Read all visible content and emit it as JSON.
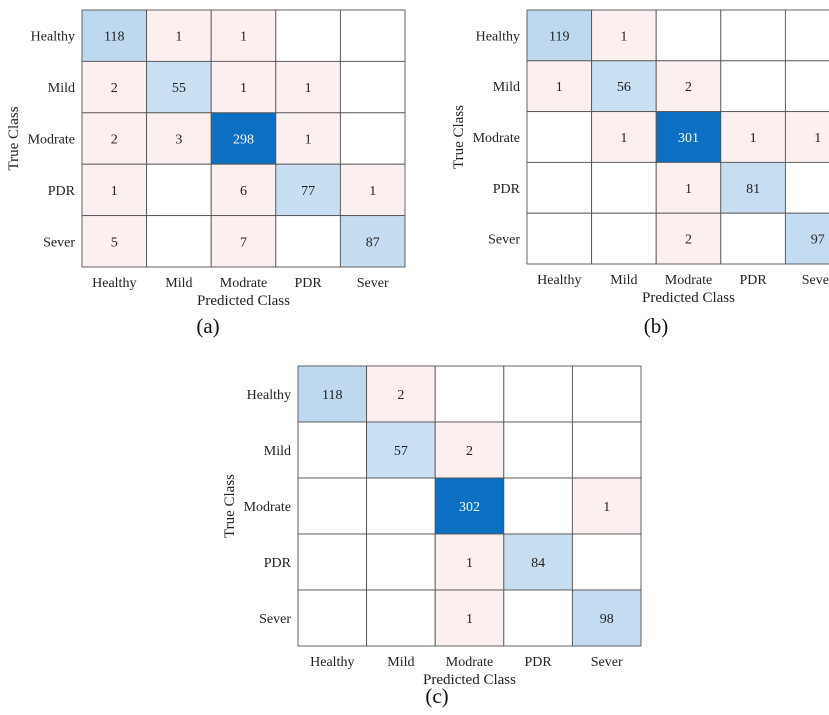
{
  "figure": {
    "panels": [
      {
        "label": "(a)"
      },
      {
        "label": "(b)"
      },
      {
        "label": "(c)"
      }
    ]
  },
  "chart_data": [
    {
      "type": "heatmap",
      "title": "",
      "xlabel": "Predicted Class",
      "ylabel": "True Class",
      "x_categories": [
        "Healthy",
        "Mild",
        "Modrate",
        "PDR",
        "Sever"
      ],
      "y_categories": [
        "Healthy",
        "Mild",
        "Modrate",
        "PDR",
        "Sever"
      ],
      "matrix": [
        [
          118,
          1,
          1,
          null,
          null
        ],
        [
          2,
          55,
          1,
          1,
          null
        ],
        [
          2,
          3,
          298,
          1,
          null
        ],
        [
          1,
          null,
          6,
          77,
          1
        ],
        [
          5,
          null,
          7,
          null,
          87
        ]
      ],
      "colors": {
        "diagonal_scale": [
          "#c9dff2",
          "#0b6fc2"
        ],
        "off_diagonal": "#fcefef"
      }
    },
    {
      "type": "heatmap",
      "title": "",
      "xlabel": "Predicted Class",
      "ylabel": "True Class",
      "x_categories": [
        "Healthy",
        "Mild",
        "Modrate",
        "PDR",
        "Sever"
      ],
      "y_categories": [
        "Healthy",
        "Mild",
        "Modrate",
        "PDR",
        "Sever"
      ],
      "matrix": [
        [
          119,
          1,
          null,
          null,
          null
        ],
        [
          1,
          56,
          2,
          null,
          null
        ],
        [
          null,
          1,
          301,
          1,
          1
        ],
        [
          null,
          null,
          1,
          81,
          null
        ],
        [
          null,
          null,
          2,
          null,
          97
        ]
      ],
      "colors": {
        "diagonal_scale": [
          "#c9dff2",
          "#0b6fc2"
        ],
        "off_diagonal": "#fcefef"
      }
    },
    {
      "type": "heatmap",
      "title": "",
      "xlabel": "Predicted Class",
      "ylabel": "True Class",
      "x_categories": [
        "Healthy",
        "Mild",
        "Modrate",
        "PDR",
        "Sever"
      ],
      "y_categories": [
        "Healthy",
        "Mild",
        "Modrate",
        "PDR",
        "Sever"
      ],
      "matrix": [
        [
          118,
          2,
          null,
          null,
          null
        ],
        [
          null,
          57,
          2,
          null,
          null
        ],
        [
          null,
          null,
          302,
          null,
          1
        ],
        [
          null,
          null,
          1,
          84,
          null
        ],
        [
          null,
          null,
          1,
          null,
          98
        ]
      ],
      "colors": {
        "diagonal_scale": [
          "#c9dff2",
          "#0b6fc2"
        ],
        "off_diagonal": "#fcefef"
      }
    }
  ]
}
